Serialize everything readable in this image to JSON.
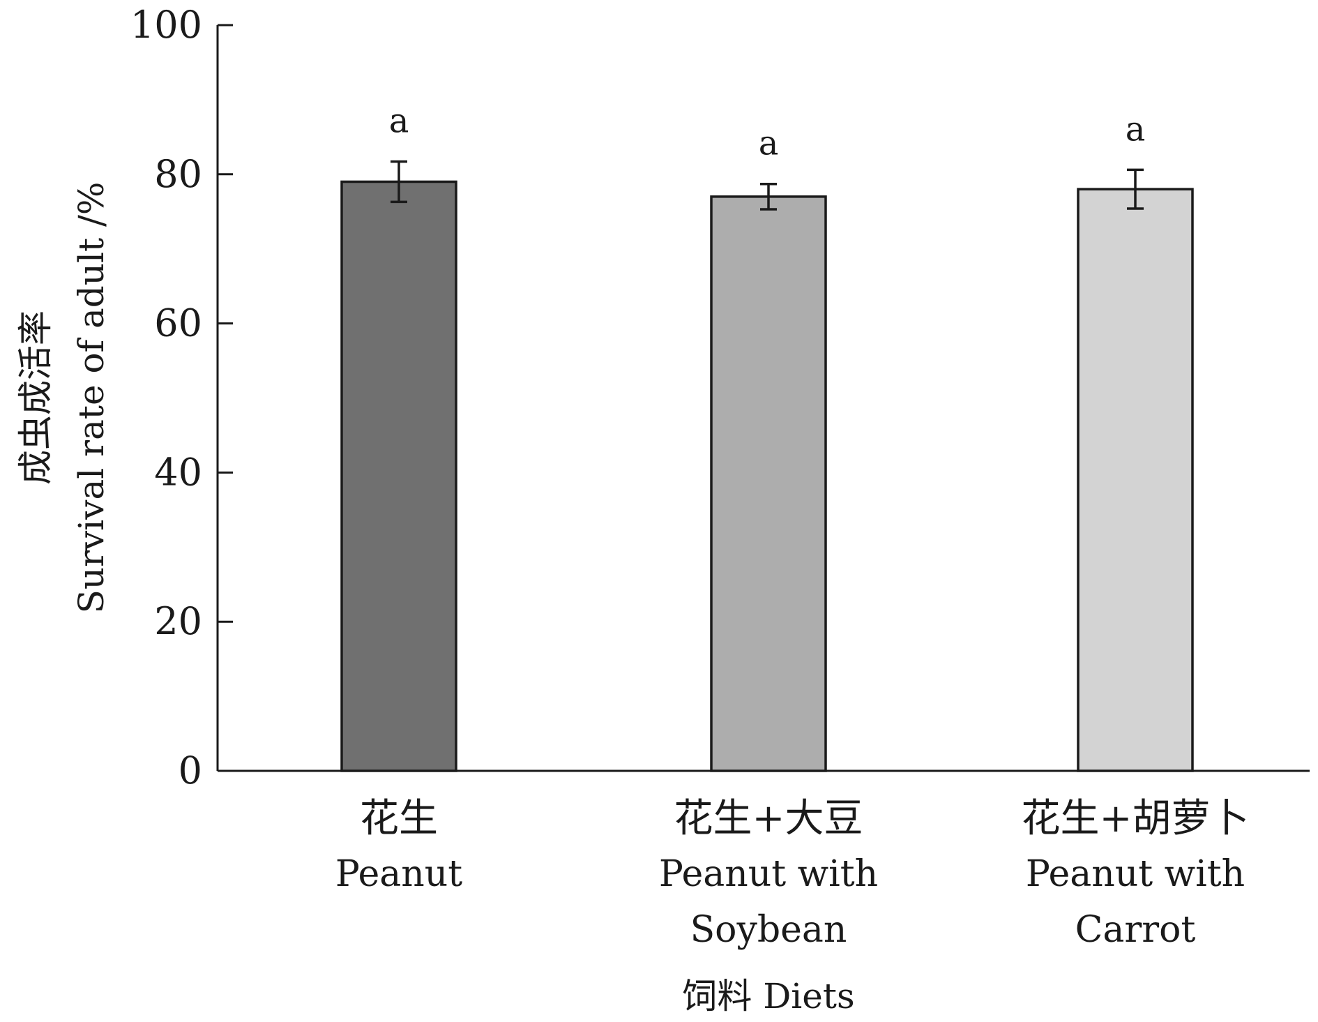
{
  "chart_data": {
    "type": "bar",
    "categories": [
      {
        "cn": "花生",
        "en": [
          "Peanut"
        ]
      },
      {
        "cn": "花生+大豆",
        "en": [
          "Peanut with",
          "Soybean"
        ]
      },
      {
        "cn": "花生+胡萝卜",
        "en": [
          "Peanut with",
          "Carrot"
        ]
      }
    ],
    "values": [
      79,
      77,
      78
    ],
    "errors": [
      2.7,
      1.7,
      2.6
    ],
    "significance": [
      "a",
      "a",
      "a"
    ],
    "colors": [
      "#707070",
      "#adadad",
      "#d3d3d3"
    ],
    "xlabel": "饲料 Diets",
    "ylabel_cn": "成虫成活率",
    "ylabel_en": "Survival rate of adult /%",
    "ylim": [
      0,
      100
    ],
    "yticks": [
      0,
      20,
      40,
      60,
      80,
      100
    ],
    "grid": false,
    "legend": "none"
  }
}
